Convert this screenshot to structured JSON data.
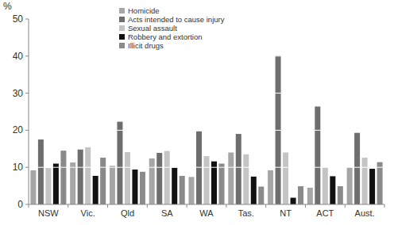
{
  "chart_data": {
    "type": "bar",
    "y_label": "%",
    "categories": [
      "NSW",
      "Vic.",
      "Qld",
      "SA",
      "WA",
      "Tas.",
      "NT",
      "ACT",
      "Aust."
    ],
    "series": [
      {
        "name": "Homicide",
        "color": "#a6a6a6",
        "values": [
          9.2,
          11.3,
          10.4,
          12.4,
          7.4,
          14,
          9.2,
          4.5,
          10
        ]
      },
      {
        "name": "Acts intended to cause injury",
        "color": "#6e6e6e",
        "values": [
          17.5,
          14.8,
          22.3,
          13.9,
          19.7,
          19,
          40.1,
          26.4,
          19.3
        ]
      },
      {
        "name": "Sexual assault",
        "color": "#c4c4c4",
        "values": [
          9.8,
          15.4,
          14.1,
          14.4,
          13,
          13.5,
          14,
          10,
          12.6
        ]
      },
      {
        "name": "Robbery and extortion",
        "color": "#111111",
        "values": [
          11,
          7.7,
          9.4,
          9.9,
          11.6,
          7.5,
          1.8,
          7.6,
          9.6
        ]
      },
      {
        "name": "Illicit drugs",
        "color": "#8a8a8a",
        "values": [
          14.5,
          12.6,
          8.8,
          7.7,
          11,
          4.8,
          4.9,
          4.9,
          11.4
        ]
      }
    ],
    "ylim": [
      0,
      50
    ],
    "yticks": [
      0,
      10,
      20,
      30,
      40,
      50
    ],
    "grid": true,
    "legend": "top-left"
  }
}
